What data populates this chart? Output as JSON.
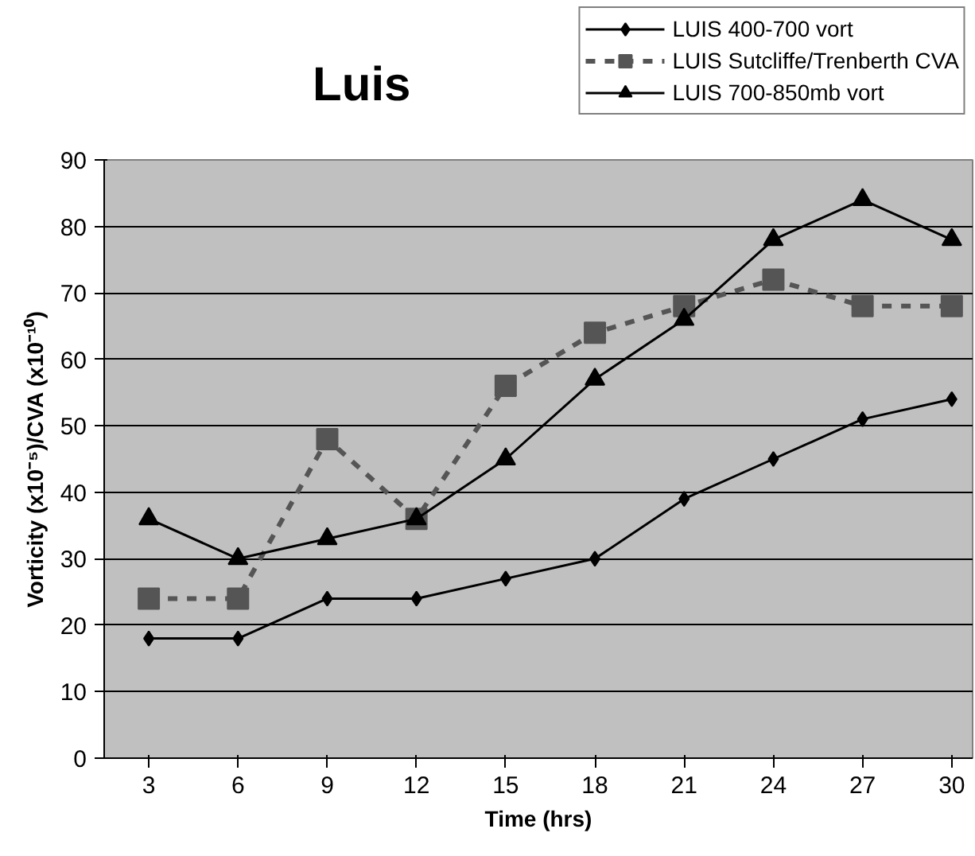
{
  "chart_data": {
    "type": "line",
    "title": "Luis",
    "xlabel": "Time (hrs)",
    "ylabel": "Vorticity (x10⁻⁵)/CVA (x10⁻¹⁰)",
    "x": [
      3,
      6,
      9,
      12,
      15,
      18,
      21,
      24,
      27,
      30
    ],
    "xlim": [
      1.5,
      30.7
    ],
    "xticks": [
      3,
      6,
      9,
      12,
      15,
      18,
      21,
      24,
      27,
      30
    ],
    "ylim": [
      0,
      90
    ],
    "yticks": [
      0,
      10,
      20,
      30,
      40,
      50,
      60,
      70,
      80,
      90
    ],
    "grid": "y",
    "legend": "top right",
    "series": [
      {
        "name": "LUIS 400-700 vort",
        "color": "#000000",
        "marker": "diamond",
        "line_style": "solid",
        "values": [
          18,
          18,
          24,
          24,
          27,
          30,
          39,
          45,
          51,
          54
        ]
      },
      {
        "name": "LUIS Sutcliffe/Trenberth CVA",
        "color": "#555555",
        "marker": "square",
        "line_style": "dashed",
        "values": [
          24,
          24,
          48,
          36,
          56,
          64,
          68,
          72,
          68,
          68
        ]
      },
      {
        "name": "LUIS 700-850mb vort",
        "color": "#000000",
        "marker": "triangle",
        "line_style": "solid",
        "values": [
          36,
          30,
          33,
          36,
          45,
          57,
          66,
          78,
          84,
          78
        ]
      }
    ]
  }
}
